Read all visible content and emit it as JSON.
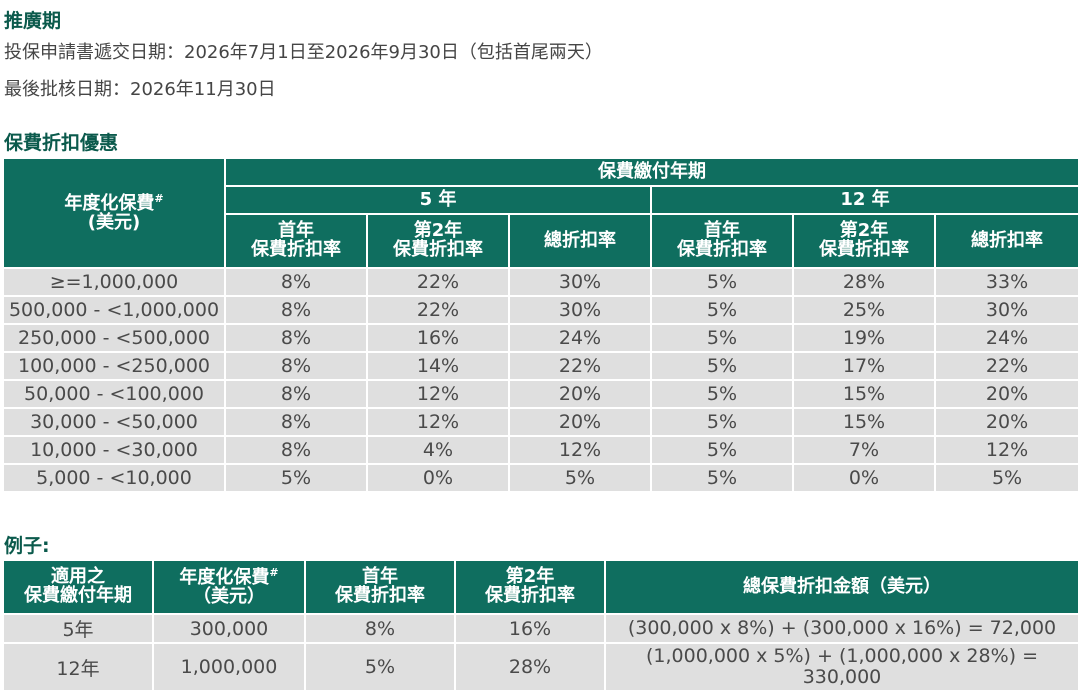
{
  "promo": {
    "title": "推廣期",
    "application_period": "投保申請書遞交日期：2026年7月1日至2026年9月30日（包括首尾兩天）",
    "approval_deadline": "最後批核日期：2026年11月30日"
  },
  "discount": {
    "title": "保費折扣優惠",
    "col_annual_premium": "年度化保費",
    "col_annual_premium_mark": "#",
    "col_currency": "(美元)",
    "col_payment_term": "保費繳付年期",
    "term_5": "5 年",
    "term_12": "12 年",
    "first_year_line1": "首年",
    "first_year_line2": "保費折扣率",
    "second_year_line1": "第2年",
    "second_year_line2": "保費折扣率",
    "total_rate": "總折扣率",
    "rows": [
      [
        "≥=1,000,000",
        "8%",
        "22%",
        "30%",
        "5%",
        "28%",
        "33%"
      ],
      [
        "500,000 - <1,000,000",
        "8%",
        "22%",
        "30%",
        "5%",
        "25%",
        "30%"
      ],
      [
        "250,000 - <500,000",
        "8%",
        "16%",
        "24%",
        "5%",
        "19%",
        "24%"
      ],
      [
        "100,000 - <250,000",
        "8%",
        "14%",
        "22%",
        "5%",
        "17%",
        "22%"
      ],
      [
        "50,000 - <100,000",
        "8%",
        "12%",
        "20%",
        "5%",
        "15%",
        "20%"
      ],
      [
        "30,000 - <50,000",
        "8%",
        "12%",
        "20%",
        "5%",
        "15%",
        "20%"
      ],
      [
        "10,000 - <30,000",
        "8%",
        "4%",
        "12%",
        "5%",
        "7%",
        "12%"
      ],
      [
        "5,000 - <10,000",
        "5%",
        "0%",
        "5%",
        "5%",
        "0%",
        "5%"
      ]
    ]
  },
  "example": {
    "title": "例子:",
    "col_term_line1": "適用之",
    "col_term_line2": "保費繳付年期",
    "col_premium_line1": "年度化保費",
    "col_premium_mark": "#",
    "col_premium_line2": "（美元）",
    "col_first_line1": "首年",
    "col_first_line2": "保費折扣率",
    "col_second_line1": "第2年",
    "col_second_line2": "保費折扣率",
    "col_total": "總保費折扣金額（美元）",
    "rows": [
      [
        "5年",
        "300,000",
        "8%",
        "16%",
        "(300,000 x 8%) + (300,000 x 16%) = 72,000"
      ],
      [
        "12年",
        "1,000,000",
        "5%",
        "28%",
        "(1,000,000 x 5%) + (1,000,000 x 28%) =\n330,000"
      ]
    ]
  }
}
